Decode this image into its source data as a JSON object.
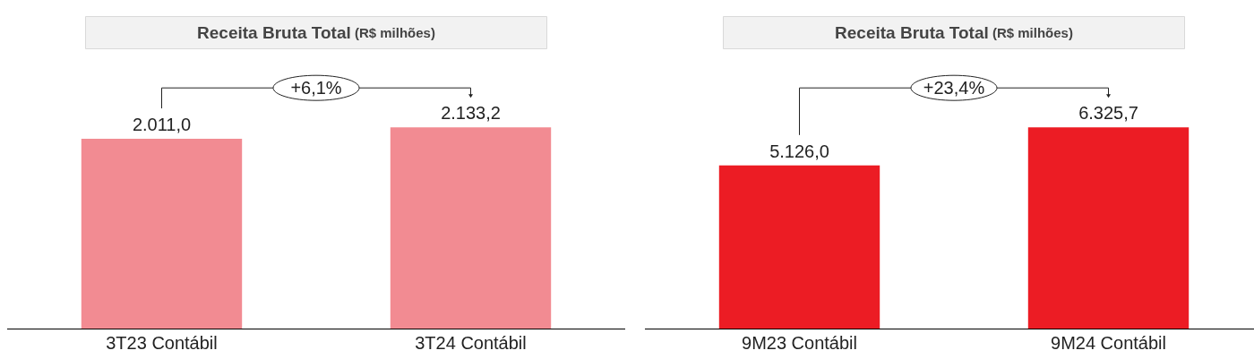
{
  "chart_data": [
    {
      "type": "bar",
      "title": "Receita Bruta Total (R$ milhões)",
      "categories": [
        "3T23 Contábil",
        "3T24 Contábil"
      ],
      "values": [
        2011.0,
        2133.2
      ],
      "value_labels": [
        "2.011,0",
        "2.133,2"
      ],
      "color": "#f28b92",
      "annotations": [
        "+6,1%"
      ]
    },
    {
      "type": "bar",
      "title": "Receita Bruta Total (R$ milhões)",
      "categories": [
        "9M23 Contábil",
        "9M24 Contábil"
      ],
      "values": [
        5126.0,
        6325.7
      ],
      "value_labels": [
        "5.126,0",
        "6.325,7"
      ],
      "color": "#ec1c24",
      "annotations": [
        "+23,4%"
      ]
    }
  ]
}
